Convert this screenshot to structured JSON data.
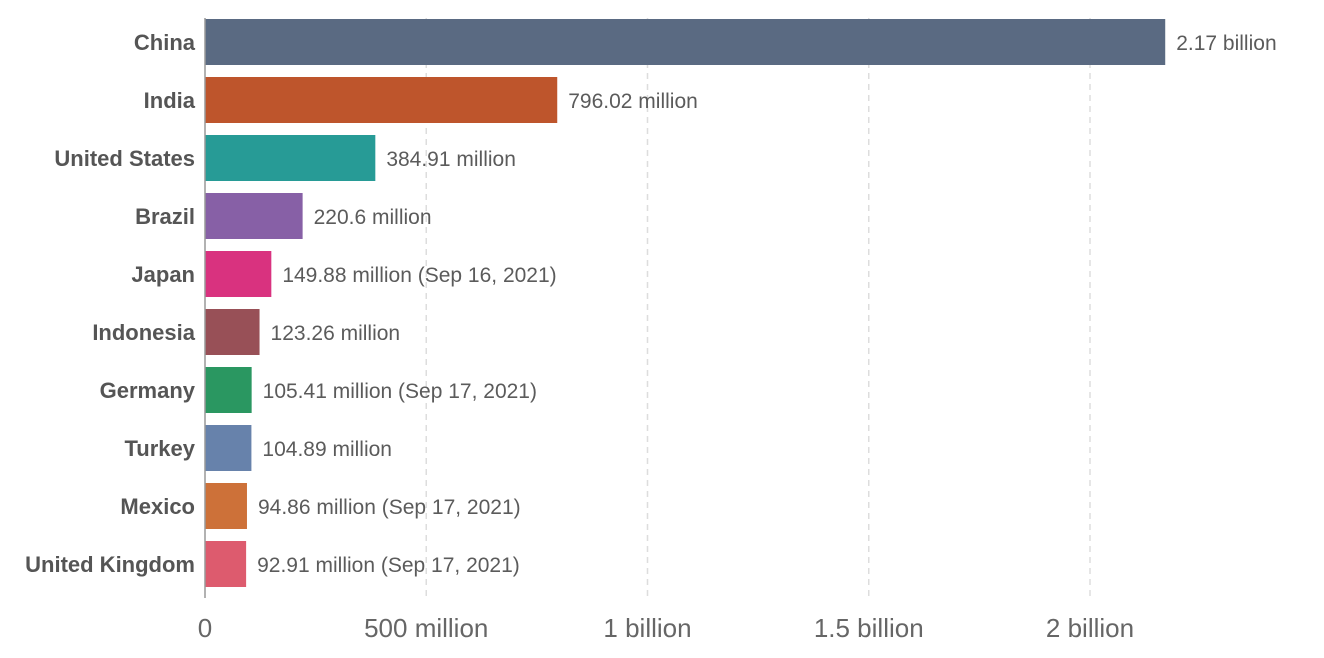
{
  "chart_data": {
    "type": "bar",
    "orientation": "horizontal",
    "title": "",
    "xlabel": "",
    "ylabel": "",
    "categories": [
      "China",
      "India",
      "United States",
      "Brazil",
      "Japan",
      "Indonesia",
      "Germany",
      "Turkey",
      "Mexico",
      "United Kingdom"
    ],
    "values": [
      2170000000,
      796020000,
      384910000,
      220600000,
      149880000,
      123260000,
      105410000,
      104890000,
      94860000,
      92910000
    ],
    "value_labels": [
      "2.17 billion",
      "796.02 million",
      "384.91 million",
      "220.6 million",
      "149.88 million (Sep 16, 2021)",
      "123.26 million",
      "105.41 million (Sep 17, 2021)",
      "104.89 million",
      "94.86 million (Sep 17, 2021)",
      "92.91 million (Sep 17, 2021)"
    ],
    "colors": [
      "#5a6a82",
      "#be552c",
      "#279b96",
      "#8760a6",
      "#d9327f",
      "#985057",
      "#2a9761",
      "#6782ab",
      "#cd7139",
      "#dd5b6e"
    ],
    "xlim": [
      0,
      2500000000
    ],
    "xticks": [
      0,
      500000000,
      1000000000,
      1500000000,
      2000000000
    ],
    "xtick_labels": [
      "0",
      "500 million",
      "1 billion",
      "1.5 billion",
      "2 billion"
    ],
    "grid": true,
    "legend": "none"
  }
}
